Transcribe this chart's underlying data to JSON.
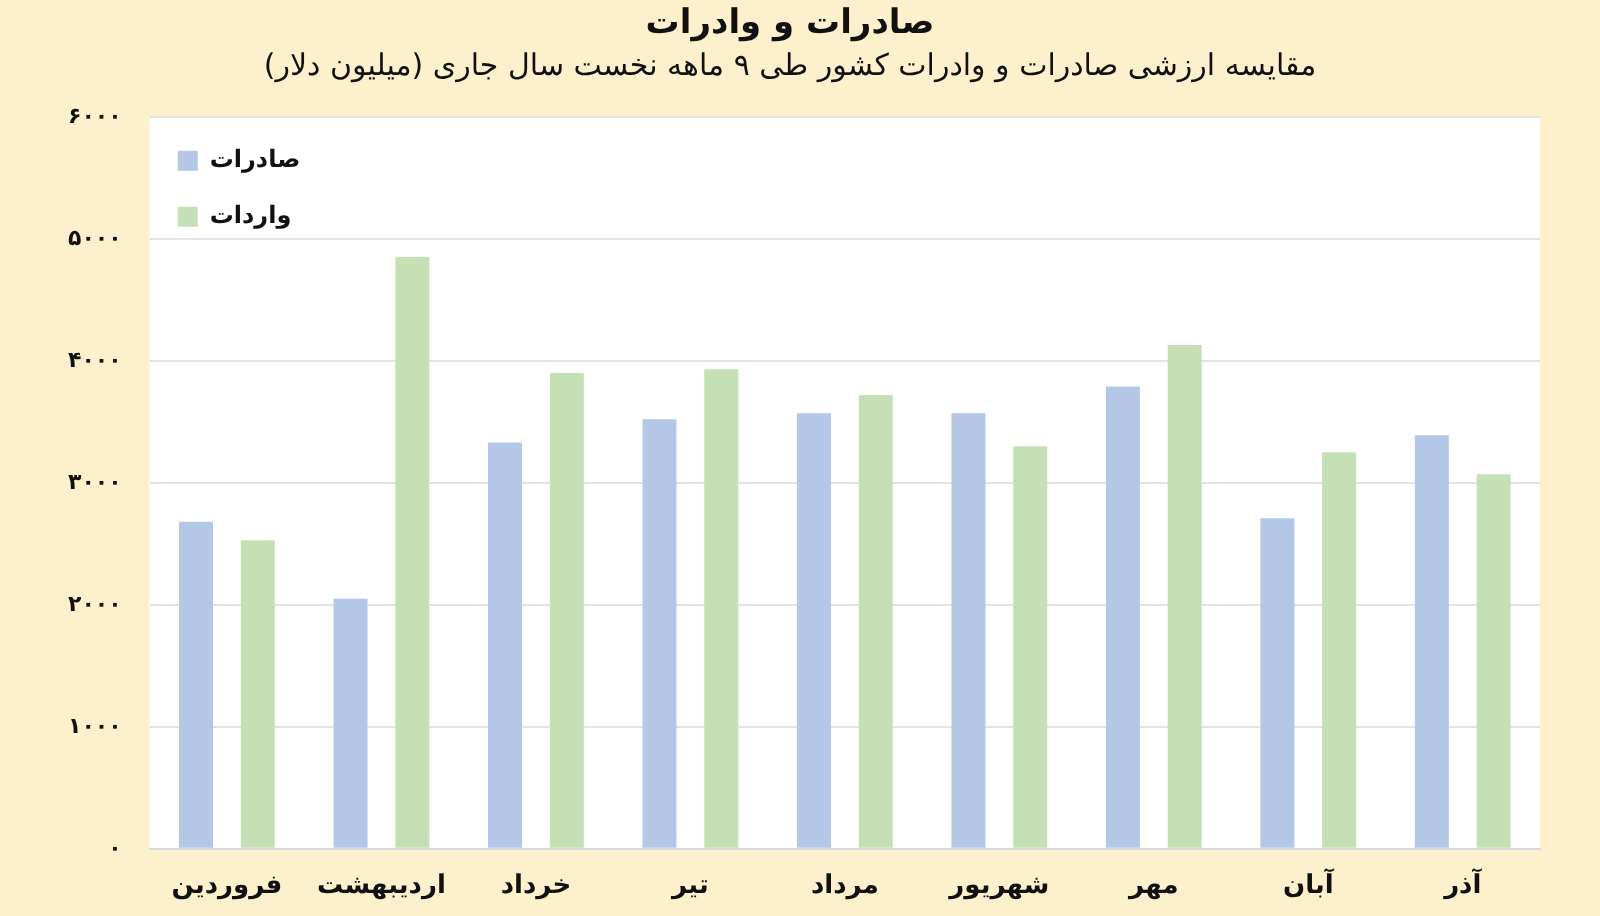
{
  "chart_data": {
    "type": "bar",
    "title": "صادرات و وادرات",
    "subtitle": "مقایسه ارزشی صادرات و وادرات کشور طی ۹ ماهه نخست سال جاری (میلیون دلار)",
    "categories": [
      "فروردین",
      "اردیبهشت",
      "خرداد",
      "تیر",
      "مرداد",
      "شهریور",
      "مهر",
      "آبان",
      "آذر"
    ],
    "series": [
      {
        "name": "صادرات",
        "color": "#b4c7e7",
        "values": [
          2680,
          2050,
          3330,
          3520,
          3570,
          3570,
          3790,
          2710,
          3390
        ]
      },
      {
        "name": "واردات",
        "color": "#c5e0b4",
        "values": [
          2530,
          4850,
          3900,
          3930,
          3720,
          3300,
          4130,
          3250,
          3070
        ]
      }
    ],
    "ylim": [
      0,
      6000
    ],
    "yticks": [
      {
        "value": 0,
        "label": "۰"
      },
      {
        "value": 1000,
        "label": "۱۰۰۰"
      },
      {
        "value": 2000,
        "label": "۲۰۰۰"
      },
      {
        "value": 3000,
        "label": "۳۰۰۰"
      },
      {
        "value": 4000,
        "label": "۴۰۰۰"
      },
      {
        "value": 5000,
        "label": "۵۰۰۰"
      },
      {
        "value": 6000,
        "label": "۶۰۰۰"
      }
    ],
    "grid": "y",
    "legend": "top left"
  }
}
